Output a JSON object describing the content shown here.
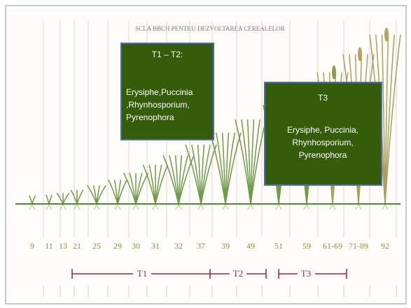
{
  "title": "SCLA BBCH PENTRU DEZVOLTAREA CEREALELOR",
  "stages": [
    "9",
    "11",
    "13",
    "21",
    "25",
    "29",
    "30",
    "31",
    "32",
    "37",
    "39",
    "49",
    "51",
    "59",
    "61-69",
    "71-89",
    "92"
  ],
  "timings": [
    "T1",
    "T2",
    "T3"
  ],
  "boxes": [
    {
      "heading": "T1 – T2:",
      "lines": [
        "Erysiphe,Puccinia",
        ",Rhynhosporium,",
        "Pyrenophora"
      ]
    },
    {
      "heading": "T3",
      "lines": [
        "Erysiphe, Puccinia,",
        "Rhynhosporium,",
        "Pyrenophora"
      ]
    }
  ]
}
